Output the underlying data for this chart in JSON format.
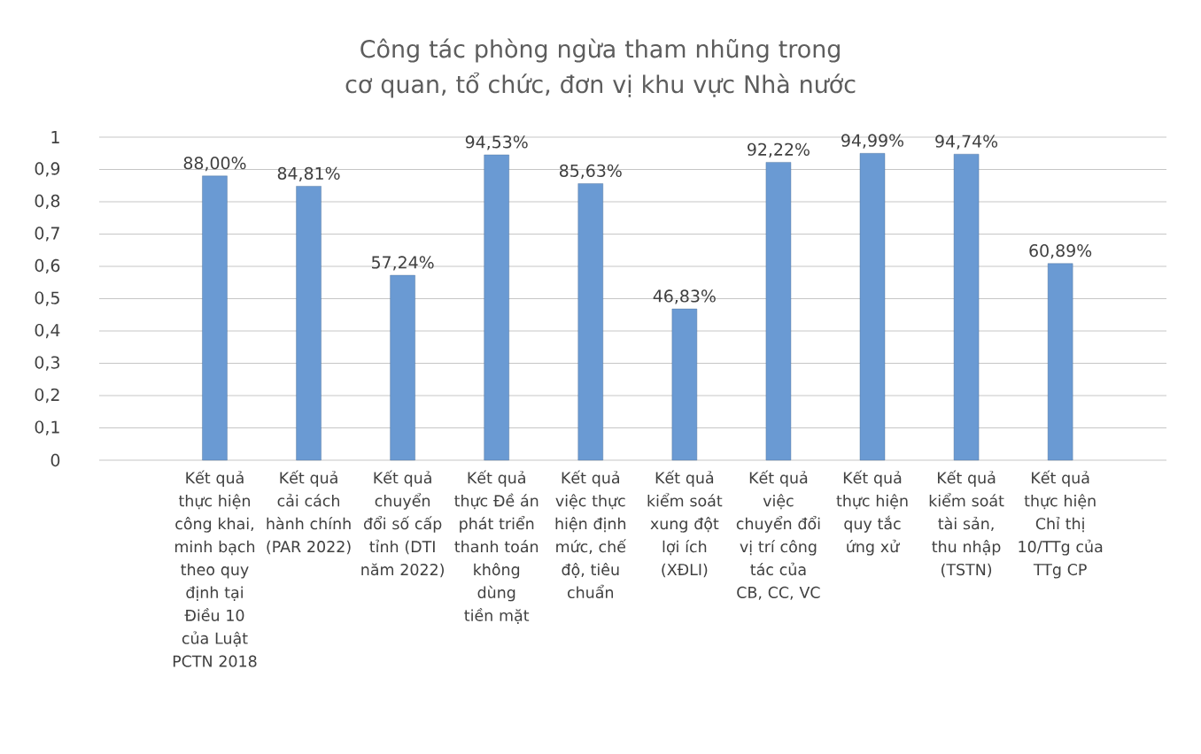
{
  "chart_data": {
    "type": "bar",
    "title": "Công tác phòng ngừa tham nhũng trong cơ quan, tổ chức, đơn vị khu vực Nhà nước",
    "categories": [
      "Kết quả thực hiện công khai, minh bạch theo quy định tại Điều 10 của Luật PCTN 2018",
      "Kết quả cải cách hành chính (PAR 2022)",
      "Kết quả chuyển đổi số cấp tỉnh (DTI năm 2022)",
      "Kết quả thực Đề án phát triển thanh toán không dùng tiền mặt",
      "Kết quả việc thực hiện định mức, chế độ, tiêu chuẩn",
      "Kết quả kiểm soát xung đột lợi ích (XĐLI)",
      "Kết quả việc chuyển đổi vị trí công tác của CB, CC, VC",
      "Kết quả thực hiện quy tắc ứng xử",
      "Kết quả kiểm soát tài sản, thu nhập (TSTN)",
      "Kết quả thực hiện Chỉ thị 10/TTg của TTg CP"
    ],
    "values": [
      0.88,
      0.8481,
      0.5724,
      0.9453,
      0.8563,
      0.4683,
      0.9222,
      0.9499,
      0.9474,
      0.6089
    ],
    "value_labels": [
      "88,00%",
      "84,81%",
      "57,24%",
      "94,53%",
      "85,63%",
      "46,83%",
      "92,22%",
      "94,99%",
      "94,74%",
      "60,89%"
    ],
    "color": "#6a9ad3",
    "ylim": [
      0,
      1
    ],
    "yticks": [
      0,
      {
        "value": 0.1,
        "label": "0,1"
      },
      {
        "value": 0.2,
        "label": "0,2"
      },
      {
        "value": 0.3,
        "label": "0,3"
      },
      {
        "value": 0.4,
        "label": "0,4"
      },
      {
        "value": 0.5,
        "label": "0,5"
      },
      {
        "value": 0.6,
        "label": "0,6"
      },
      {
        "value": 0.7,
        "label": "0,7"
      },
      {
        "value": 0.8,
        "label": "0,8"
      },
      {
        "value": 0.9,
        "label": "0,9"
      },
      1
    ],
    "grid": "y"
  }
}
